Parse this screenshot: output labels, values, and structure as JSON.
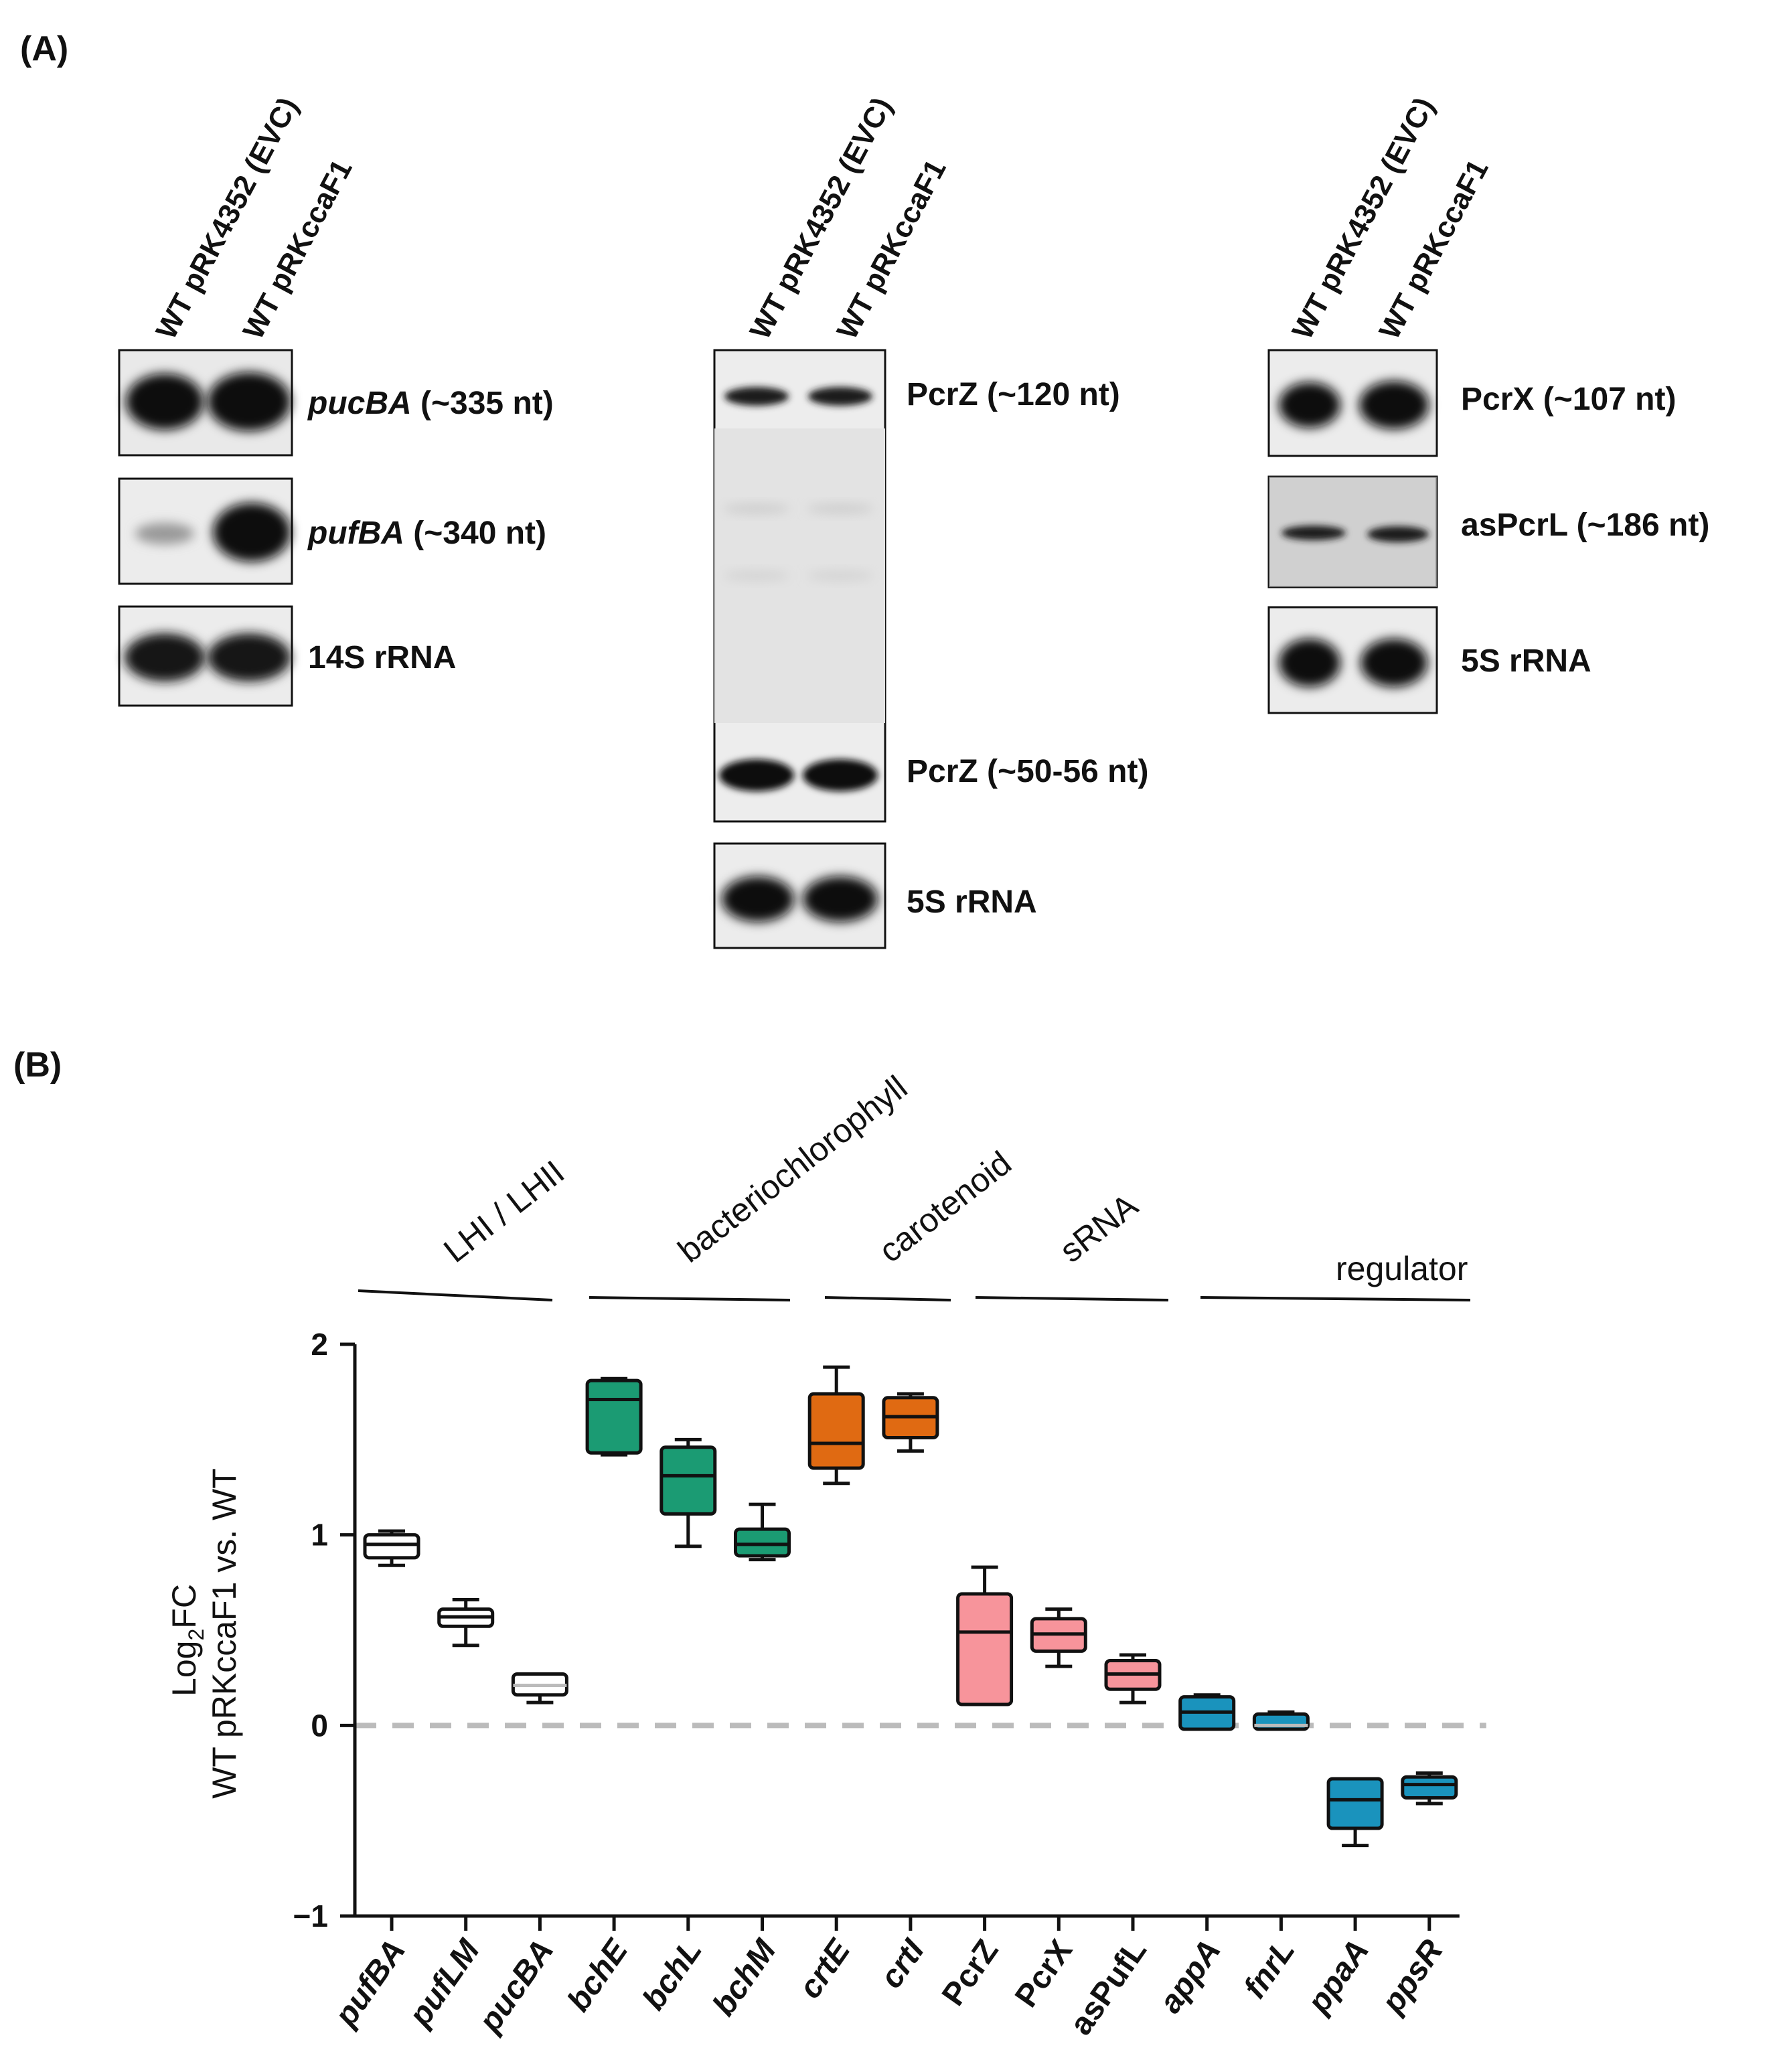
{
  "panel_a": {
    "label": "(A)",
    "lanes": [
      {
        "text": "WT pRK4352 (EVC)",
        "color": "#111111"
      },
      {
        "text": "WT pRKccaF1",
        "color": "#e8262a"
      }
    ],
    "blots": [
      {
        "name": "pucBA",
        "label_main": "pucBA",
        "label_rest": " (~335 nt)",
        "italic": true
      },
      {
        "name": "pufBA",
        "label_main": "pufBA",
        "label_rest": " (~340 nt)",
        "italic": true
      },
      {
        "name": "14S rRNA",
        "label_main": "14S rRNA",
        "label_rest": "",
        "italic": false
      },
      {
        "name": "PcrZ 120",
        "label_main": "PcrZ (~120 nt)",
        "label_rest": "",
        "italic": false
      },
      {
        "name": "PcrZ 50",
        "label_main": "PcrZ (~50-56 nt)",
        "label_rest": "",
        "italic": false
      },
      {
        "name": "5S rRNA mid",
        "label_main": "5S rRNA",
        "label_rest": "",
        "italic": false
      },
      {
        "name": "PcrX",
        "label_main": "PcrX (~107 nt)",
        "label_rest": "",
        "italic": false
      },
      {
        "name": "asPcrL",
        "label_main": "asPcrL (~186 nt)",
        "label_rest": "",
        "italic": false
      },
      {
        "name": "5S rRNA right",
        "label_main": "5S rRNA",
        "label_rest": "",
        "italic": false
      }
    ]
  },
  "panel_b": {
    "label": "(B)",
    "chart_data": {
      "type": "box",
      "ylabel_line1": "Log",
      "ylabel_sub": "2",
      "ylabel_line1_rest": "FC",
      "ylabel_line2": "WT pRKccaF1 vs. WT",
      "ylim": [
        -1,
        2
      ],
      "yticks": [
        2,
        1,
        0,
        -1
      ],
      "ytick_labels": [
        "2",
        "1",
        "0",
        "−1"
      ],
      "baseline": 0,
      "groups": [
        {
          "label": "LHI / LHII",
          "members": [
            "pufBA",
            "pufLM",
            "pucBA"
          ]
        },
        {
          "label": "bacteriochlorophyll",
          "members": [
            "bchE",
            "bchL",
            "bchM"
          ]
        },
        {
          "label": "carotenoid",
          "members": [
            "crtE",
            "crtI"
          ]
        },
        {
          "label": "sRNA",
          "members": [
            "PcrZ",
            "PcrX",
            "asPufL"
          ]
        },
        {
          "label": "regulator",
          "members": [
            "appA",
            "fnrL",
            "ppaA",
            "ppsR"
          ]
        }
      ],
      "categories": [
        {
          "name": "pufBA",
          "italic": true,
          "min": 0.84,
          "q1": 0.88,
          "median": 0.95,
          "q3": 1.0,
          "max": 1.02,
          "color": "#ffffff"
        },
        {
          "name": "pufLM",
          "italic": true,
          "min": 0.42,
          "q1": 0.52,
          "median": 0.57,
          "q3": 0.61,
          "max": 0.66,
          "color": "#ffffff"
        },
        {
          "name": "pucBA",
          "italic": true,
          "min": 0.12,
          "q1": 0.16,
          "median": 0.21,
          "q3": 0.27,
          "max": 0.27,
          "color": "#ffffff"
        },
        {
          "name": "bchE",
          "italic": true,
          "min": 1.42,
          "q1": 1.43,
          "median": 1.71,
          "q3": 1.81,
          "max": 1.82,
          "color": "#1b9b73"
        },
        {
          "name": "bchL",
          "italic": true,
          "min": 0.94,
          "q1": 1.11,
          "median": 1.31,
          "q3": 1.46,
          "max": 1.5,
          "color": "#1b9b73"
        },
        {
          "name": "bchM",
          "italic": true,
          "min": 0.87,
          "q1": 0.89,
          "median": 0.95,
          "q3": 1.03,
          "max": 1.16,
          "color": "#1b9b73"
        },
        {
          "name": "crtE",
          "italic": true,
          "min": 1.27,
          "q1": 1.35,
          "median": 1.48,
          "q3": 1.74,
          "max": 1.88,
          "color": "#e06a12"
        },
        {
          "name": "crtI",
          "italic": true,
          "min": 1.44,
          "q1": 1.51,
          "median": 1.62,
          "q3": 1.72,
          "max": 1.74,
          "color": "#e06a12"
        },
        {
          "name": "PcrZ",
          "italic": false,
          "min": 0.11,
          "q1": 0.11,
          "median": 0.49,
          "q3": 0.69,
          "max": 0.83,
          "color": "#f7949b"
        },
        {
          "name": "PcrX",
          "italic": false,
          "min": 0.31,
          "q1": 0.39,
          "median": 0.48,
          "q3": 0.56,
          "max": 0.61,
          "color": "#f7949b"
        },
        {
          "name": "asPufL",
          "italic": false,
          "min": 0.12,
          "q1": 0.19,
          "median": 0.27,
          "q3": 0.34,
          "max": 0.37,
          "color": "#f7949b"
        },
        {
          "name": "appA",
          "italic": true,
          "min": -0.02,
          "q1": -0.02,
          "median": 0.07,
          "q3": 0.15,
          "max": 0.16,
          "color": "#1a93bd"
        },
        {
          "name": "fnrL",
          "italic": true,
          "min": -0.02,
          "q1": -0.02,
          "median": 0.0,
          "q3": 0.06,
          "max": 0.07,
          "color": "#1a93bd"
        },
        {
          "name": "ppaA",
          "italic": true,
          "min": -0.63,
          "q1": -0.54,
          "median": -0.39,
          "q3": -0.28,
          "max": -0.28,
          "color": "#1a93bd"
        },
        {
          "name": "ppsR",
          "italic": true,
          "min": -0.41,
          "q1": -0.38,
          "median": -0.31,
          "q3": -0.27,
          "max": -0.25,
          "color": "#1a93bd"
        }
      ],
      "dashed_line_color": "#bbbbbb"
    }
  }
}
